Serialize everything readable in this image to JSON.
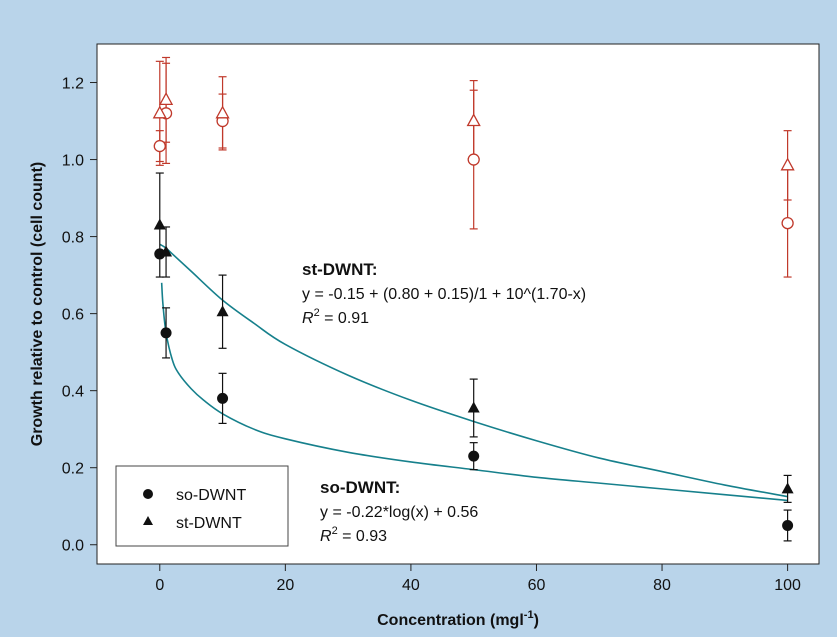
{
  "chart_data": {
    "type": "scatter",
    "xlabel": "Concentration (mgl",
    "xlabel_sup": "-1",
    "xlabel_close": ")",
    "ylabel": "Growth relative to control (cell count)",
    "xlim": [
      -10,
      105
    ],
    "ylim": [
      -0.05,
      1.3
    ],
    "x_ticks": [
      0,
      20,
      40,
      60,
      80,
      100
    ],
    "x_tick_labels": [
      "0",
      "20",
      "40",
      "60",
      "80",
      "100"
    ],
    "y_ticks": [
      0.0,
      0.2,
      0.4,
      0.6,
      0.8,
      1.0,
      1.2
    ],
    "y_tick_labels": [
      "0.0",
      "0.2",
      "0.4",
      "0.6",
      "0.8",
      "1.0",
      "1.2"
    ],
    "grid": false,
    "legend_position": "bottom-left",
    "legend": [
      {
        "label": "so-DWNT",
        "marker": "circle-filled"
      },
      {
        "label": "st-DWNT",
        "marker": "triangle-filled"
      }
    ],
    "series": [
      {
        "name": "so-DWNT",
        "marker": "circle-filled",
        "color": "#111111",
        "x": [
          0,
          1,
          10,
          50,
          100
        ],
        "y": [
          0.755,
          0.55,
          0.38,
          0.23,
          0.05
        ],
        "err": [
          0.0,
          0.065,
          0.065,
          0.035,
          0.04
        ]
      },
      {
        "name": "st-DWNT",
        "marker": "triangle-filled",
        "color": "#111111",
        "x": [
          0,
          1,
          10,
          50,
          100
        ],
        "y": [
          0.83,
          0.76,
          0.605,
          0.355,
          0.145
        ],
        "err": [
          0.135,
          0.065,
          0.095,
          0.075,
          0.035
        ]
      },
      {
        "marker": "circle-open",
        "color": "#c0392b",
        "x": [
          0,
          1,
          10,
          50,
          100
        ],
        "y": [
          1.035,
          1.12,
          1.1,
          1.0,
          0.835
        ],
        "err": [
          0.04,
          0.13,
          0.07,
          0.18,
          0.14
        ]
      },
      {
        "marker": "triangle-open",
        "color": "#c0392b",
        "x": [
          0,
          1,
          10,
          50,
          100
        ],
        "y": [
          1.12,
          1.155,
          1.12,
          1.1,
          0.985
        ],
        "err": [
          0.135,
          0.11,
          0.095,
          0.105,
          0.09
        ]
      }
    ],
    "fits": [
      {
        "name": "st-DWNT fit",
        "color": "#16808c",
        "x": [
          0,
          1,
          2,
          5,
          10,
          15,
          20,
          30,
          40,
          50,
          60,
          70,
          80,
          90,
          100
        ],
        "y": [
          0.78,
          0.77,
          0.755,
          0.71,
          0.635,
          0.575,
          0.52,
          0.44,
          0.375,
          0.32,
          0.27,
          0.225,
          0.19,
          0.155,
          0.125
        ]
      },
      {
        "name": "so-DWNT fit",
        "color": "#16808c",
        "x": [
          0.3,
          0.5,
          1,
          2,
          3,
          5,
          7,
          10,
          15,
          20,
          30,
          40,
          50,
          60,
          70,
          80,
          90,
          100
        ],
        "y": [
          0.68,
          0.625,
          0.55,
          0.48,
          0.445,
          0.405,
          0.375,
          0.34,
          0.3,
          0.275,
          0.24,
          0.215,
          0.195,
          0.175,
          0.16,
          0.145,
          0.13,
          0.115
        ]
      }
    ],
    "annotations": [
      {
        "title": "st-DWNT:",
        "equation": "y = -0.15 + (0.80 + 0.15)/1 + 10^(1.70-x)",
        "r2_symbol": "R",
        "r2_sup": "2",
        "r2_value": " = 0.91"
      },
      {
        "title": "so-DWNT:",
        "equation": "y = -0.22*log(x) + 0.56",
        "r2_symbol": "R",
        "r2_sup": "2",
        "r2_value": " = 0.93"
      }
    ]
  }
}
